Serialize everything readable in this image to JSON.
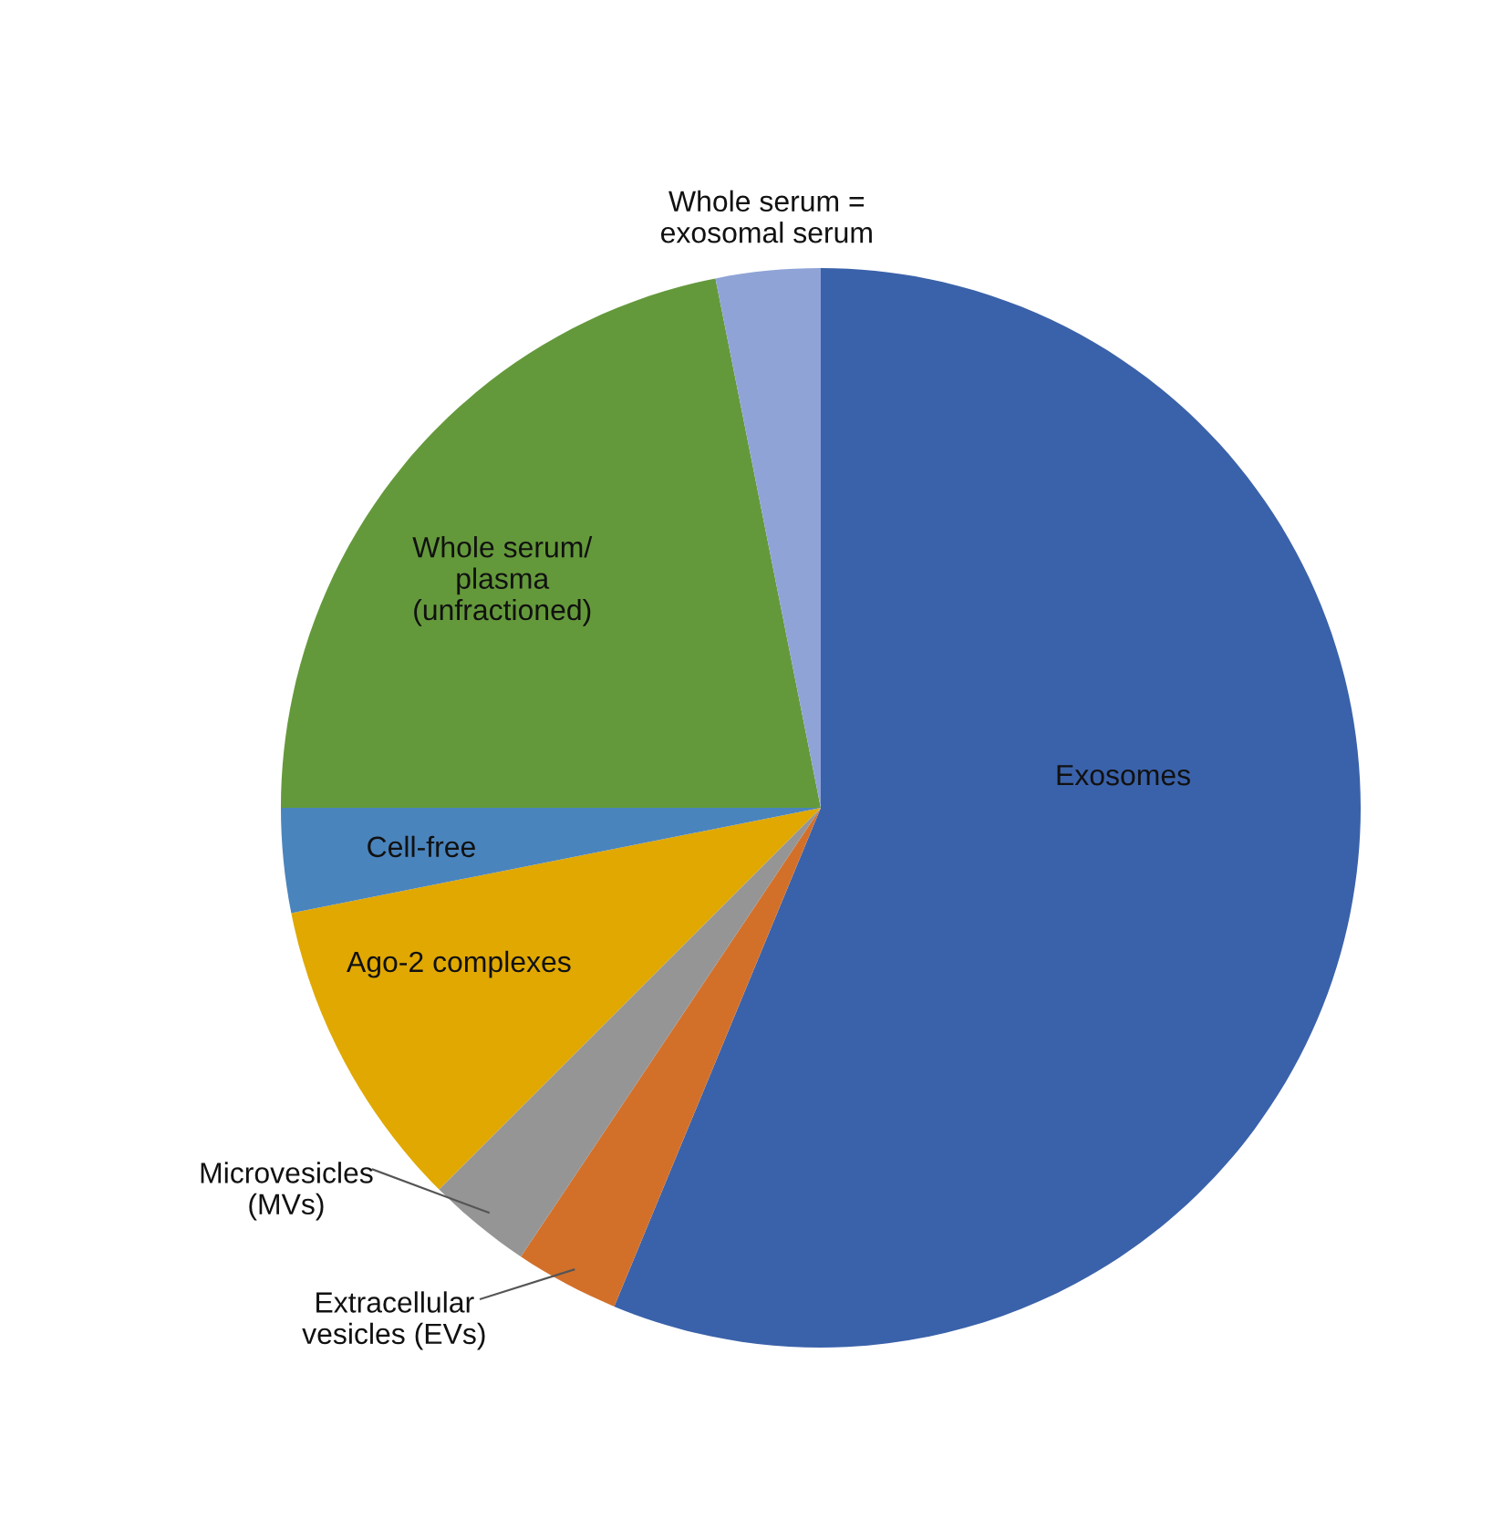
{
  "chart_data": {
    "type": "pie",
    "categories": [
      "Exosomes",
      "Extracellular\nvesicles (EVs)",
      "Microvesicles\n(MVs)",
      "Ago-2 complexes",
      "Cell-free",
      "Whole serum/\nplasma\n(unfractioned)",
      "Whole serum =\nexosomal serum"
    ],
    "values": [
      56.25,
      3.125,
      3.125,
      9.375,
      3.125,
      21.875,
      3.125
    ],
    "colors": [
      "#3a62aa",
      "#d2702a",
      "#959595",
      "#e0a800",
      "#4a84bc",
      "#64993b",
      "#8fa3d6"
    ],
    "legend": false
  }
}
